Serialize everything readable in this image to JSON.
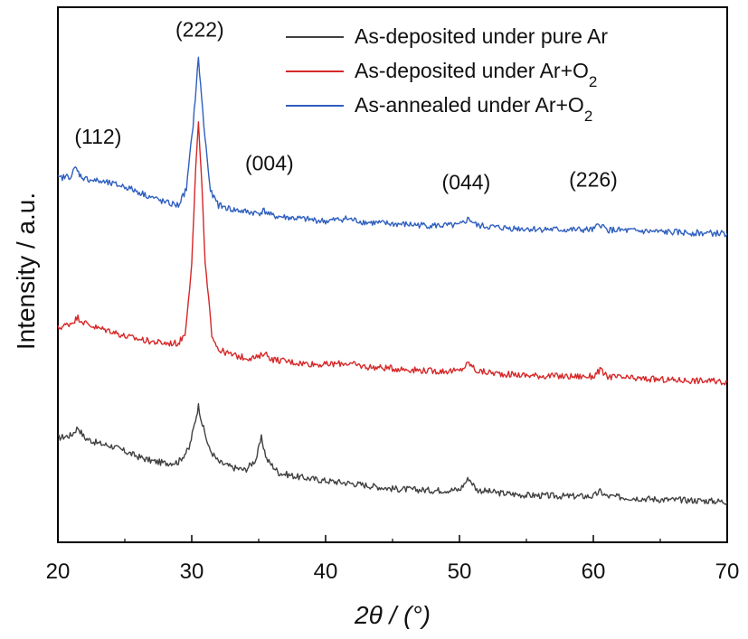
{
  "chart_data": {
    "type": "line",
    "title": "",
    "xlabel": "2θ / (°)",
    "ylabel": "Intensity / a.u.",
    "xlim": [
      20,
      70
    ],
    "ylim": [
      0,
      10
    ],
    "x_ticks": [
      20,
      30,
      40,
      50,
      60,
      70
    ],
    "y_ticks_shown": false,
    "grid": false,
    "legend_position": "top-right",
    "series": [
      {
        "name": "As-deposited under pure Ar",
        "name_main": "As-deposited under pure Ar",
        "name_sub": "",
        "color": "#404040",
        "x": [
          20,
          21,
          21.5,
          22,
          23,
          24,
          25,
          26,
          27,
          28,
          29,
          29.8,
          30.2,
          30.5,
          30.8,
          31.3,
          32,
          33,
          34,
          34.8,
          35.2,
          35.6,
          36.5,
          38,
          40,
          42,
          45,
          48,
          50,
          50.7,
          51.3,
          53,
          55,
          58,
          60,
          60.5,
          61,
          63,
          65,
          68,
          70
        ],
        "y": [
          1.95,
          2.0,
          2.15,
          1.95,
          1.85,
          1.8,
          1.7,
          1.6,
          1.52,
          1.48,
          1.5,
          1.75,
          2.2,
          2.55,
          2.2,
          1.75,
          1.5,
          1.4,
          1.35,
          1.55,
          1.95,
          1.55,
          1.3,
          1.22,
          1.15,
          1.1,
          1.0,
          0.97,
          0.98,
          1.2,
          0.98,
          0.92,
          0.88,
          0.86,
          0.86,
          0.95,
          0.86,
          0.83,
          0.8,
          0.78,
          0.76
        ]
      },
      {
        "name": "As-deposited under Ar+O2",
        "name_main": "As-deposited under Ar+O",
        "name_sub": "2",
        "color": "#d62728",
        "x": [
          20,
          21,
          21.5,
          22,
          23,
          24,
          25,
          26,
          27,
          28,
          29,
          29.5,
          30,
          30.3,
          30.5,
          30.7,
          31,
          31.5,
          32,
          33,
          34,
          35,
          35.4,
          36,
          38,
          40,
          41.5,
          43,
          45,
          48,
          50,
          50.7,
          51.3,
          53,
          55,
          58,
          60,
          60.5,
          61,
          63,
          65,
          68,
          70
        ],
        "y": [
          4.0,
          4.1,
          4.2,
          4.1,
          4.0,
          3.95,
          3.85,
          3.8,
          3.75,
          3.72,
          3.72,
          3.9,
          5.2,
          7.0,
          7.8,
          7.0,
          5.2,
          3.9,
          3.6,
          3.5,
          3.45,
          3.45,
          3.55,
          3.42,
          3.35,
          3.32,
          3.35,
          3.28,
          3.25,
          3.2,
          3.2,
          3.35,
          3.2,
          3.15,
          3.12,
          3.1,
          3.1,
          3.22,
          3.1,
          3.06,
          3.04,
          3.02,
          3.0
        ]
      },
      {
        "name": "As-annealed under Ar+O2",
        "name_main": "As-annealed under Ar+O",
        "name_sub": "2",
        "color": "#2f5fbf",
        "x": [
          20,
          21,
          21.3,
          21.7,
          22,
          23,
          24,
          25,
          26,
          27,
          28,
          29,
          29.6,
          30.1,
          30.5,
          30.9,
          31.4,
          32,
          33,
          34,
          35,
          35.4,
          36,
          38,
          40,
          41.5,
          43,
          45,
          48,
          50,
          50.7,
          51.3,
          53,
          55,
          58,
          60,
          60.5,
          61,
          63,
          65,
          68,
          70
        ],
        "y": [
          6.8,
          6.85,
          7.0,
          6.85,
          6.8,
          6.75,
          6.7,
          6.65,
          6.55,
          6.45,
          6.35,
          6.3,
          6.6,
          7.8,
          9.05,
          7.8,
          6.55,
          6.3,
          6.22,
          6.18,
          6.15,
          6.2,
          6.1,
          6.05,
          6.0,
          6.05,
          5.98,
          5.95,
          5.92,
          5.92,
          6.05,
          5.92,
          5.88,
          5.86,
          5.84,
          5.84,
          5.95,
          5.84,
          5.82,
          5.8,
          5.78,
          5.77
        ]
      }
    ],
    "annotations": [
      {
        "text": "(112)",
        "x": 23.0,
        "y": 7.45
      },
      {
        "text": "(222)",
        "x": 30.6,
        "y": 9.45
      },
      {
        "text": "(004)",
        "x": 35.8,
        "y": 6.95
      },
      {
        "text": "(044)",
        "x": 50.5,
        "y": 6.6
      },
      {
        "text": "(226)",
        "x": 60.0,
        "y": 6.65
      }
    ]
  }
}
